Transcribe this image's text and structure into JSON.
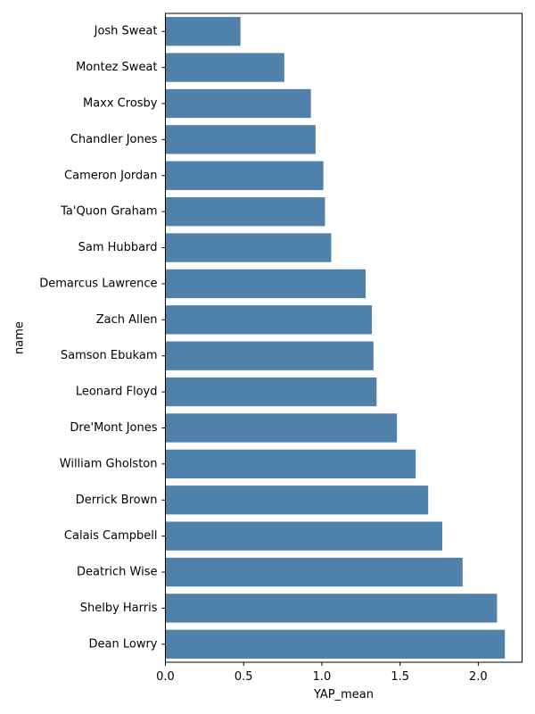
{
  "chart_data": {
    "type": "bar",
    "orientation": "horizontal",
    "title": "",
    "xlabel": "YAP_mean",
    "ylabel": "name",
    "xlim": [
      0,
      2.28
    ],
    "xticks": [
      "0.0",
      "0.5",
      "1.0",
      "1.5",
      "2.0"
    ],
    "grid": false,
    "bar_color": "#4f81aa",
    "categories": [
      "Josh Sweat",
      "Montez Sweat",
      "Maxx Crosby",
      "Chandler Jones",
      "Cameron Jordan",
      "Ta'Quon Graham",
      "Sam Hubbard",
      "Demarcus Lawrence",
      "Zach Allen",
      "Samson Ebukam",
      "Leonard Floyd",
      "Dre'Mont Jones",
      "William Gholston",
      "Derrick Brown",
      "Calais Campbell",
      "Deatrich Wise",
      "Shelby Harris",
      "Dean Lowry"
    ],
    "values": [
      0.48,
      0.76,
      0.93,
      0.96,
      1.01,
      1.02,
      1.06,
      1.28,
      1.32,
      1.33,
      1.35,
      1.48,
      1.6,
      1.68,
      1.77,
      1.9,
      2.12,
      2.17
    ]
  }
}
